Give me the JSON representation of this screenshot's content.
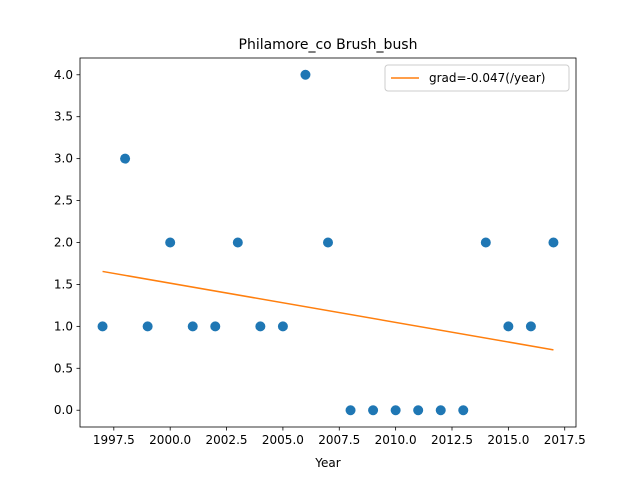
{
  "chart_data": {
    "type": "scatter",
    "title": "Philamore_co Brush_bush",
    "xlabel": "Year",
    "ylabel": "",
    "xlim": [
      1996.0,
      2018.0
    ],
    "ylim": [
      -0.2,
      4.2
    ],
    "xticks": [
      1997.5,
      2000.0,
      2002.5,
      2005.0,
      2007.5,
      2010.0,
      2012.5,
      2015.0,
      2017.5
    ],
    "xtick_labels": [
      "1997.5",
      "2000.0",
      "2002.5",
      "2005.0",
      "2007.5",
      "2010.0",
      "2012.5",
      "2015.0",
      "2017.5"
    ],
    "yticks": [
      0.0,
      0.5,
      1.0,
      1.5,
      2.0,
      2.5,
      3.0,
      3.5,
      4.0
    ],
    "ytick_labels": [
      "0.0",
      "0.5",
      "1.0",
      "1.5",
      "2.0",
      "2.5",
      "3.0",
      "3.5",
      "4.0"
    ],
    "grid": false,
    "legend_position": "top-right",
    "series": [
      {
        "kind": "scatter",
        "color": "#1f77b4",
        "x": [
          1997,
          1998,
          1999,
          2000,
          2001,
          2002,
          2003,
          2004,
          2005,
          2006,
          2007,
          2008,
          2009,
          2010,
          2011,
          2012,
          2013,
          2014,
          2015,
          2016,
          2017
        ],
        "y": [
          1,
          3,
          1,
          2,
          1,
          1,
          2,
          1,
          1,
          4,
          2,
          0,
          0,
          0,
          0,
          0,
          0,
          2,
          1,
          1,
          2
        ]
      },
      {
        "kind": "line",
        "name": "grad=-0.047(/year)",
        "color": "#ff7f0e",
        "x": [
          1997,
          2017
        ],
        "y": [
          1.655,
          0.72
        ]
      }
    ]
  }
}
